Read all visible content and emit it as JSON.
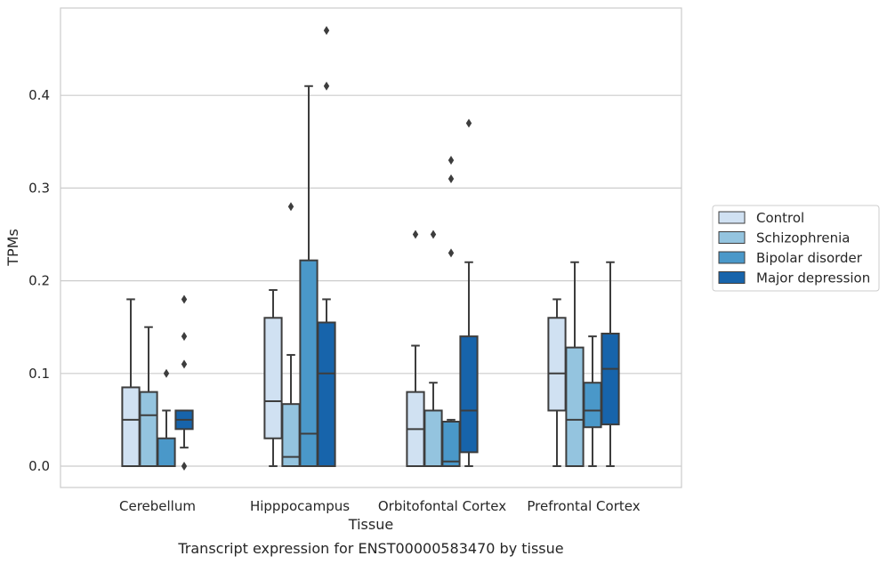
{
  "chart_data": {
    "type": "box",
    "xlabel": "Tissue",
    "ylabel": "TPMs",
    "caption": "Transcript expression for ENST00000583470 by tissue",
    "ylim": [
      -0.023,
      0.495
    ],
    "yticks": [
      0.0,
      0.1,
      0.2,
      0.3,
      0.4
    ],
    "ytick_labels": [
      "0.0",
      "0.1",
      "0.2",
      "0.3",
      "0.4"
    ],
    "grid": "horizontal",
    "legend_position": "right",
    "categories": [
      "Cerebellum",
      "Hipppocampus",
      "Orbitofontal Cortex",
      "Prefrontal Cortex"
    ],
    "series": [
      {
        "name": "Control",
        "color": "#d0e1f2",
        "boxes": [
          {
            "whislo": 0.0,
            "q1": 0.0,
            "med": 0.05,
            "q3": 0.085,
            "whishi": 0.18,
            "fliers": []
          },
          {
            "whislo": 0.0,
            "q1": 0.03,
            "med": 0.07,
            "q3": 0.16,
            "whishi": 0.19,
            "fliers": []
          },
          {
            "whislo": 0.0,
            "q1": 0.0,
            "med": 0.04,
            "q3": 0.08,
            "whishi": 0.13,
            "fliers": [
              0.25
            ]
          },
          {
            "whislo": 0.0,
            "q1": 0.06,
            "med": 0.1,
            "q3": 0.16,
            "whishi": 0.18,
            "fliers": []
          }
        ]
      },
      {
        "name": "Schizophrenia",
        "color": "#94c4df",
        "boxes": [
          {
            "whislo": 0.0,
            "q1": 0.0,
            "med": 0.055,
            "q3": 0.08,
            "whishi": 0.15,
            "fliers": []
          },
          {
            "whislo": 0.0,
            "q1": 0.0,
            "med": 0.01,
            "q3": 0.067,
            "whishi": 0.12,
            "fliers": [
              0.28
            ]
          },
          {
            "whislo": 0.0,
            "q1": 0.0,
            "med": 0.0,
            "q3": 0.06,
            "whishi": 0.09,
            "fliers": [
              0.25
            ]
          },
          {
            "whislo": 0.0,
            "q1": 0.0,
            "med": 0.05,
            "q3": 0.128,
            "whishi": 0.22,
            "fliers": []
          }
        ]
      },
      {
        "name": "Bipolar disorder",
        "color": "#4a98c9",
        "boxes": [
          {
            "whislo": 0.0,
            "q1": 0.0,
            "med": 0.0,
            "q3": 0.03,
            "whishi": 0.06,
            "fliers": [
              0.1
            ]
          },
          {
            "whislo": 0.0,
            "q1": 0.0,
            "med": 0.035,
            "q3": 0.222,
            "whishi": 0.41,
            "fliers": []
          },
          {
            "whislo": 0.0,
            "q1": 0.0,
            "med": 0.005,
            "q3": 0.048,
            "whishi": 0.05,
            "fliers": [
              0.23,
              0.31,
              0.33
            ]
          },
          {
            "whislo": 0.0,
            "q1": 0.042,
            "med": 0.06,
            "q3": 0.09,
            "whishi": 0.14,
            "fliers": []
          }
        ]
      },
      {
        "name": "Major depression",
        "color": "#1764ab",
        "boxes": [
          {
            "whislo": 0.02,
            "q1": 0.04,
            "med": 0.05,
            "q3": 0.06,
            "whishi": 0.06,
            "fliers": [
              0.0,
              0.11,
              0.14,
              0.18
            ]
          },
          {
            "whislo": 0.0,
            "q1": 0.0,
            "med": 0.1,
            "q3": 0.155,
            "whishi": 0.18,
            "fliers": [
              0.41,
              0.47
            ]
          },
          {
            "whislo": 0.0,
            "q1": 0.015,
            "med": 0.06,
            "q3": 0.14,
            "whishi": 0.22,
            "fliers": [
              0.37
            ]
          },
          {
            "whislo": 0.0,
            "q1": 0.045,
            "med": 0.105,
            "q3": 0.143,
            "whishi": 0.22,
            "fliers": []
          }
        ]
      }
    ]
  }
}
